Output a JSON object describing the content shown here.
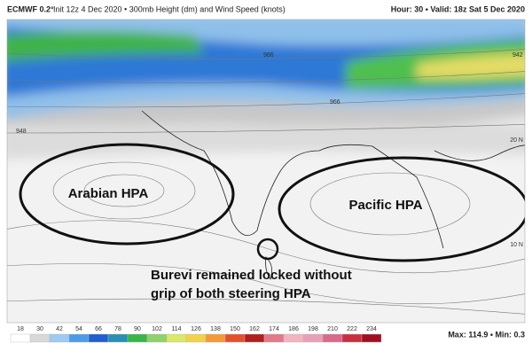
{
  "header": {
    "model": "ECMWF 0.2°",
    "init": "Init 12z 4 Dec 2020 • 300mb Height (dm) and Wind Speed (knots)",
    "valid": "Hour: 30 • Valid: 18z Sat 5 Dec 2020"
  },
  "map": {
    "contour_labels": [
      "948",
      "966",
      "966",
      "942"
    ],
    "lat_labels": [
      "20 N",
      "10 N"
    ],
    "annotations": {
      "arabian": "Arabian HPA",
      "pacific": "Pacific HPA",
      "burevi": "Burevi remained locked without grip of both steering HPA"
    }
  },
  "colorbar": {
    "labels": [
      18,
      30,
      42,
      54,
      66,
      78,
      90,
      102,
      114,
      126,
      138,
      150,
      162,
      174,
      186,
      198,
      210,
      222,
      234
    ],
    "colors": [
      "#ffffff",
      "#d8d8d8",
      "#9ec9f0",
      "#4d9be6",
      "#1f5fcf",
      "#2a8fb0",
      "#3ab54a",
      "#8fd16a",
      "#d9e76a",
      "#f2d24a",
      "#f29a3a",
      "#e4502e",
      "#b01e1e",
      "#e07a8a",
      "#f2b4c0",
      "#e8a0b8",
      "#d86a8a",
      "#c83040",
      "#a01020"
    ]
  },
  "stats": "Max: 114.9 • Min: 0.3"
}
